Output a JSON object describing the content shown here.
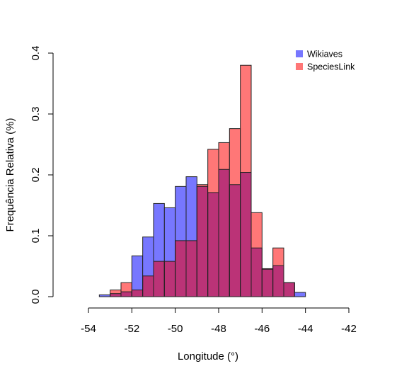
{
  "chart_data": {
    "type": "bar",
    "title": "",
    "xlabel": "Longitude (°)",
    "ylabel": "Frequência Relativa (%)",
    "xlim": [
      -54,
      -42
    ],
    "ylim": [
      0,
      0.4
    ],
    "xticks": [
      -54,
      -52,
      -50,
      -48,
      -46,
      -44,
      -42
    ],
    "xtick_labels": [
      "-54",
      "-52",
      "-50",
      "-48",
      "-46",
      "-44",
      "-42"
    ],
    "yticks": [
      0,
      0.1,
      0.2,
      0.3,
      0.4
    ],
    "ytick_labels": [
      "0.0",
      "0.1",
      "0.2",
      "0.3",
      "0.4"
    ],
    "bin_width": 0.5,
    "bin_starts": [
      -53.5,
      -53,
      -52.5,
      -52,
      -51.5,
      -51,
      -50.5,
      -50,
      -49.5,
      -49,
      -48.5,
      -48,
      -47.5,
      -47,
      -46.5,
      -46,
      -45.5,
      -45,
      -44.5,
      -44
    ],
    "legend_position": "top-right",
    "series": [
      {
        "name": "Wikiaves",
        "color": "#7777ff",
        "values": [
          0.003,
          0.005,
          0.008,
          0.067,
          0.098,
          0.153,
          0.146,
          0.181,
          0.197,
          0.181,
          0.171,
          0.209,
          0.184,
          0.204,
          0.08,
          0.045,
          0.051,
          0.023,
          0.007,
          0
        ]
      },
      {
        "name": "SpeciesLink",
        "color": "#ff7777",
        "values": [
          0,
          0.011,
          0.023,
          0.011,
          0.034,
          0.058,
          0.058,
          0.092,
          0.092,
          0.184,
          0.242,
          0.253,
          0.276,
          0.38,
          0.138,
          0.046,
          0.08,
          0.023,
          0,
          0
        ]
      }
    ],
    "overlap_color": "#bb3377"
  }
}
